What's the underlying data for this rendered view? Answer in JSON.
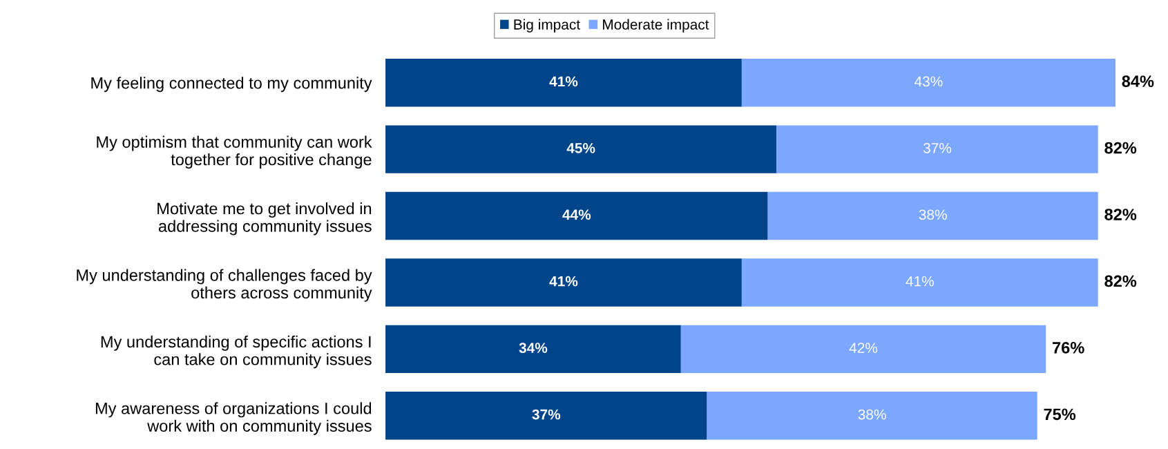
{
  "chart_data": {
    "type": "bar",
    "orientation": "horizontal",
    "stacked": true,
    "categories": [
      "My feeling connected to my community",
      "My optimism that community can work\ntogether for positive change",
      "Motivate me to get involved in\naddressing community issues",
      "My understanding of challenges faced by\nothers across community",
      "My understanding of specific actions I\ncan take on community issues",
      "My awareness of organizations I could\nwork with on community issues"
    ],
    "series": [
      {
        "name": "Big impact",
        "color": "#00448a",
        "values": [
          41,
          45,
          44,
          41,
          34,
          37
        ],
        "value_labels": [
          "41%",
          "45%",
          "44%",
          "41%",
          "34%",
          "37%"
        ]
      },
      {
        "name": "Moderate impact",
        "color": "#7ba7ff",
        "values": [
          43,
          37,
          38,
          41,
          42,
          38
        ],
        "value_labels": [
          "43%",
          "37%",
          "38%",
          "41%",
          "42%",
          "38%"
        ]
      }
    ],
    "totals": [
      "84%",
      "82%",
      "82%",
      "82%",
      "76%",
      "75%"
    ],
    "tick_labels": "y",
    "grid": false,
    "legend": "top"
  }
}
